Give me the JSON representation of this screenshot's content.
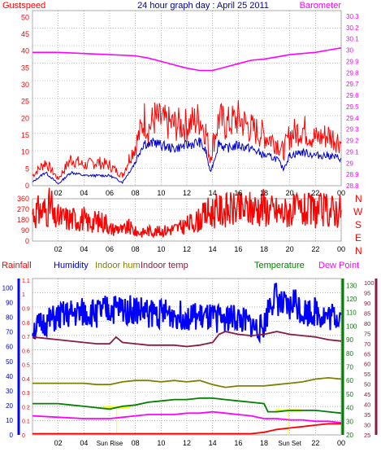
{
  "title": "24 hour graph day : April 25 2011",
  "colors": {
    "gust": "#ff0000",
    "wind": "#0000cc",
    "baro": "#ff00ff",
    "direction": "#ff0000",
    "humidity": "#0000ff",
    "indoor_hum": "#808000",
    "indoor_temp": "#8b1a3c",
    "temperature": "#008000",
    "dew_point": "#ff00ff",
    "rain": "#ff0000",
    "grid": "#8a8a8a",
    "sun_marker": "#ffff00"
  },
  "chart_data": [
    {
      "type": "line",
      "labels": {
        "left": "Gustspeed",
        "right": "Barometer"
      },
      "x_ticks": [
        "02",
        "04",
        "06",
        "08",
        "10",
        "12",
        "14",
        "16",
        "18",
        "20",
        "22",
        "00"
      ],
      "y_left_ticks": [
        "0",
        "5",
        "10",
        "15",
        "20",
        "25",
        "30",
        "35",
        "40",
        "45",
        "50"
      ],
      "y_right_ticks": [
        "28.8",
        "28.9",
        "29",
        "29.1",
        "29.2",
        "29.3",
        "29.4",
        "29.5",
        "29.6",
        "29.7",
        "29.8",
        "29.9",
        "30",
        "30.1",
        "30.2",
        "30.3"
      ],
      "ylim_left": [
        0,
        52
      ],
      "ylim_right": [
        28.8,
        30.35
      ],
      "series": [
        {
          "id": "gust",
          "x": [
            0,
            1,
            2,
            3,
            4,
            5,
            6,
            7,
            7.5,
            8,
            8.3,
            8.7,
            9,
            9.5,
            10,
            11,
            12,
            13,
            13.5,
            13.8,
            14,
            14.5,
            15,
            16,
            17,
            18,
            19,
            19.5,
            20,
            21,
            22,
            23,
            24
          ],
          "y": [
            3,
            7,
            2,
            8,
            6,
            7,
            6,
            3,
            8,
            12,
            15,
            20,
            17,
            20,
            19,
            18,
            18,
            20,
            16,
            8,
            12,
            20,
            18,
            20,
            17,
            15,
            13,
            10,
            15,
            17,
            14,
            15,
            13
          ]
        },
        {
          "id": "wind",
          "x": [
            0,
            1,
            2,
            3,
            4,
            5,
            6,
            7,
            7.5,
            8,
            8.3,
            8.7,
            9,
            9.5,
            10,
            11,
            12,
            13,
            13.5,
            13.8,
            14,
            14.5,
            15,
            16,
            17,
            18,
            19,
            19.5,
            20,
            21,
            22,
            23,
            24
          ],
          "y": [
            1,
            4,
            0.5,
            4,
            3,
            3,
            3,
            1,
            4,
            7,
            10,
            13,
            12,
            13,
            12,
            11,
            12,
            13,
            10,
            4,
            6,
            13,
            11,
            12,
            11,
            9,
            8,
            5,
            9,
            10,
            9,
            9,
            8
          ]
        },
        {
          "id": "baro",
          "x": [
            0,
            2,
            4,
            6,
            8,
            9,
            10,
            11,
            12,
            13,
            14,
            15,
            16,
            17,
            18,
            19,
            20,
            21,
            22,
            23,
            24
          ],
          "y": [
            29.98,
            29.98,
            29.97,
            29.96,
            29.95,
            29.93,
            29.9,
            29.87,
            29.84,
            29.82,
            29.82,
            29.85,
            29.88,
            29.91,
            29.92,
            29.94,
            29.96,
            29.97,
            29.98,
            30.0,
            30.02
          ]
        }
      ]
    },
    {
      "type": "line",
      "labels": {
        "right": [
          "N",
          "W",
          "S",
          "E",
          "N"
        ]
      },
      "x_ticks": [
        "02",
        "04",
        "06",
        "08",
        "10",
        "12",
        "14",
        "16",
        "18",
        "20",
        "22",
        "00"
      ],
      "y_left_ticks": [
        "0",
        "90",
        "180",
        "270",
        "360"
      ],
      "ylim_left": [
        0,
        360
      ],
      "series": [
        {
          "id": "direction",
          "x": [
            0,
            0.5,
            1.0,
            1.5,
            1.6,
            2.0,
            3.0,
            4.0,
            4.2,
            5.0,
            5.8,
            6.0,
            6.7,
            7.0,
            7.5,
            8.0,
            8.5,
            9.0,
            9.5,
            10,
            10.5,
            11,
            11.5,
            12,
            12.5,
            13,
            13.3,
            13.6,
            14,
            15,
            16,
            17,
            18,
            18.5,
            19,
            19.5,
            20,
            21,
            22,
            23,
            24
          ],
          "y": [
            240,
            250,
            260,
            310,
            180,
            200,
            190,
            190,
            160,
            170,
            160,
            100,
            110,
            90,
            120,
            80,
            70,
            90,
            80,
            85,
            95,
            105,
            115,
            140,
            160,
            185,
            210,
            240,
            250,
            265,
            265,
            275,
            295,
            260,
            250,
            240,
            260,
            255,
            260,
            260,
            262
          ]
        }
      ]
    },
    {
      "type": "line",
      "labels": {
        "rain": "Rainfall",
        "humidity": "Humidity",
        "indoor_hum": "Indoor hum",
        "indoor_temp": "Indoor temp",
        "temperature": "Temperature",
        "dew_point": "Dew Point"
      },
      "sun_labels": [
        "Sun Rise",
        "Sun Set"
      ],
      "x_ticks": [
        "02",
        "04",
        "Sun Rise",
        "08",
        "10",
        "12",
        "14",
        "16",
        "18",
        "Sun Set",
        "22",
        "00"
      ],
      "y_humidity_ticks": [
        "0",
        "10",
        "20",
        "30",
        "40",
        "50",
        "60",
        "70",
        "80",
        "90",
        "100"
      ],
      "y_rain_ticks": [
        "0",
        "0.1",
        "0.2",
        "0.3",
        "0.4",
        "0.5",
        "0.6",
        "0.7",
        "0.8",
        "0.9",
        "1",
        "1.1"
      ],
      "y_temp_ticks": [
        "20",
        "30",
        "40",
        "50",
        "60",
        "70",
        "80",
        "90",
        "100",
        "110",
        "120",
        "130"
      ],
      "y_dew_ticks": [
        "25",
        "30",
        "35",
        "40",
        "45",
        "50",
        "55",
        "60",
        "65",
        "70",
        "75",
        "80",
        "85",
        "90",
        "95",
        "100"
      ],
      "ylim_temp": [
        20,
        135
      ],
      "series": [
        {
          "id": "humidity",
          "x": [
            0,
            1,
            2,
            3,
            4,
            5,
            6,
            7,
            8,
            9,
            10,
            11,
            12,
            13,
            14,
            15,
            16,
            17,
            17.5,
            18,
            18.5,
            19,
            19.3,
            20,
            20.3,
            21,
            22,
            23,
            24
          ],
          "y": [
            72,
            76,
            80,
            82,
            83,
            83,
            85,
            86,
            85,
            83,
            83,
            82,
            81,
            80,
            79,
            80,
            79,
            75,
            72,
            74,
            92,
            94,
            88,
            85,
            92,
            84,
            84,
            80,
            82
          ]
        },
        {
          "id": "indoor_temp",
          "x": [
            0,
            2,
            4,
            5,
            6,
            6.5,
            7,
            8,
            9,
            10,
            11,
            12,
            13,
            14,
            14.5,
            15,
            16,
            17,
            18,
            19,
            20,
            21,
            22,
            23,
            24
          ],
          "y": [
            92,
            90,
            88,
            87,
            87,
            92,
            88,
            87,
            86,
            86,
            86,
            85,
            86,
            88,
            94,
            96,
            94,
            93,
            94,
            96,
            94,
            93,
            92,
            90,
            89
          ]
        },
        {
          "id": "indoor_hum",
          "x": [
            0,
            2,
            4,
            5,
            6,
            7,
            8,
            9,
            10,
            11,
            12,
            13,
            14,
            15,
            16,
            17,
            18,
            19,
            20,
            21,
            22,
            23,
            24
          ],
          "y": [
            58,
            58,
            58,
            57,
            57,
            59,
            60,
            60,
            59,
            60,
            59,
            60,
            57,
            55,
            56,
            56,
            56,
            57,
            58,
            59,
            61,
            62,
            61
          ]
        },
        {
          "id": "temperature",
          "x": [
            0,
            2,
            3,
            4,
            5,
            6,
            7,
            8,
            9,
            10,
            11,
            12,
            13,
            14,
            15,
            16,
            17,
            18,
            18.3,
            19,
            20,
            21,
            22,
            23,
            24
          ],
          "y": [
            43,
            43,
            42,
            41,
            40,
            39,
            41,
            42,
            44,
            45,
            46,
            46,
            47,
            47,
            46,
            45,
            44,
            43,
            37,
            37,
            38,
            38,
            38,
            37,
            36
          ]
        },
        {
          "id": "dew_point",
          "x": [
            0,
            2,
            4,
            5,
            6,
            7,
            8,
            9,
            10,
            11,
            12,
            13,
            14,
            15,
            16,
            17,
            18,
            19,
            20,
            21,
            22,
            23,
            24
          ],
          "y": [
            34,
            33,
            32,
            32,
            32,
            33,
            34,
            35,
            35,
            35,
            36,
            36,
            37,
            36,
            35,
            34,
            32,
            32,
            31,
            31,
            30,
            30,
            29
          ]
        },
        {
          "id": "rain",
          "x": [
            0,
            10,
            17,
            18,
            18.5,
            19,
            20,
            21,
            22,
            23,
            24
          ],
          "y": [
            0,
            0,
            0,
            0.01,
            0.02,
            0.03,
            0.04,
            0.05,
            0.06,
            0.07,
            0.07
          ]
        }
      ],
      "sun_markers": [
        {
          "x": 6.55,
          "y": 40.3
        },
        {
          "x": 19.9,
          "y": 38
        }
      ]
    }
  ]
}
